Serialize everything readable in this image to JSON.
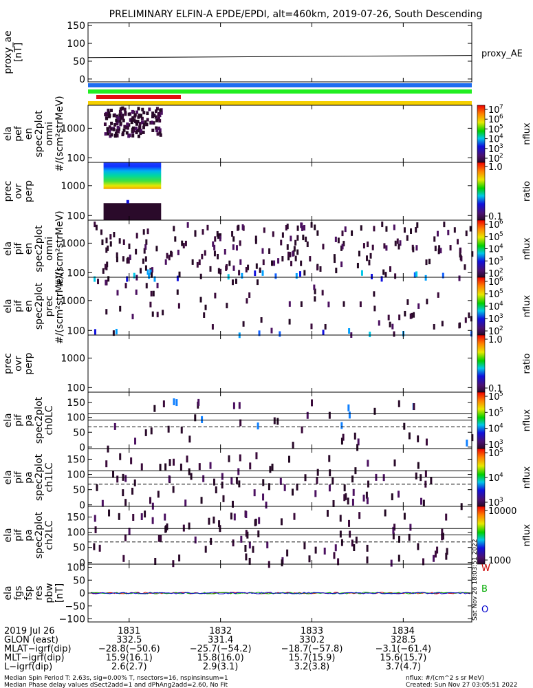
{
  "title": "PRELIMINARY ELFIN-A EPDE/EPDI, alt=460km, 2019-07-26, South Descending",
  "colors": {
    "bar_blue": "#1e6cf0",
    "bar_green": "#22ee22",
    "bar_red": "#e01010",
    "bar_yellow": "#f5d000",
    "pbw_w": "#cc0000",
    "pbw_b": "#00aa00",
    "pbw_o": "#0000cc"
  },
  "chart_data": [
    {
      "id": "proxy_ae",
      "type": "line",
      "ylabel_lines": [
        "proxy_ae",
        "[nT]"
      ],
      "legend": "proxy_AE",
      "ylim": [
        -8,
        158
      ],
      "yticks": [
        "150",
        "100",
        "50",
        "0"
      ],
      "ytick_values": [
        150,
        100,
        50,
        0
      ],
      "x": [
        1830.55,
        1834.75
      ],
      "values": [
        60,
        66
      ]
    },
    {
      "id": "epd_ef_omni",
      "type": "heatmap",
      "ylabel_lines": [
        "ela",
        "pef",
        "en",
        "spec2plot",
        "omni",
        "#/(scm²strMeV)"
      ],
      "ylim_log": [
        70,
        6000
      ],
      "yticks": [
        "1000",
        "100"
      ],
      "ytick_values": [
        1000,
        100
      ],
      "colorbar": {
        "label": "nflux",
        "ticks": [
          "10",
          "10",
          "10",
          "10",
          "10",
          "10"
        ],
        "exps": [
          "7",
          "6",
          "5",
          "4",
          "3",
          "2"
        ]
      }
    },
    {
      "id": "epd_ef_prec_ratio",
      "type": "heatmap",
      "ylabel_lines": [
        "prec",
        "ovr",
        "perp"
      ],
      "ylim_log": [
        70,
        6000
      ],
      "yticks": [
        "1000",
        "100"
      ],
      "ytick_values": [
        1000,
        100
      ],
      "colorbar": {
        "label": "ratio",
        "ticks": [
          "1.0",
          "0.1"
        ]
      }
    },
    {
      "id": "epd_if_omni",
      "type": "heatmap",
      "ylabel_lines": [
        "ela",
        "pif",
        "en",
        "spec2plot",
        "omni",
        "#/(scm²strMeV)"
      ],
      "ylim_log": [
        70,
        6000
      ],
      "yticks": [
        "1000",
        "100"
      ],
      "ytick_values": [
        1000,
        100
      ],
      "colorbar": {
        "label": "nflux",
        "ticks": [
          "10",
          "10",
          "10",
          "10",
          "10"
        ],
        "exps": [
          "6",
          "5",
          "4",
          "3",
          "2"
        ]
      }
    },
    {
      "id": "epd_if_prec",
      "type": "heatmap",
      "ylabel_lines": [
        "ela",
        "pif",
        "en",
        "spec2plot",
        "prec",
        "#/(scm²strMeV)"
      ],
      "ylim_log": [
        70,
        6000
      ],
      "yticks": [
        "1000",
        "100"
      ],
      "ytick_values": [
        1000,
        100
      ],
      "colorbar": {
        "label": "nflux",
        "ticks": [
          "10",
          "10",
          "10",
          "10",
          "10"
        ],
        "exps": [
          "6",
          "5",
          "4",
          "3",
          "2"
        ]
      }
    },
    {
      "id": "epd_if_prec_ratio",
      "type": "heatmap",
      "ylabel_lines": [
        "prec",
        "ovr",
        "perp"
      ],
      "ylim_log": [
        70,
        6000
      ],
      "yticks": [
        "1000",
        "100"
      ],
      "ytick_values": [
        1000,
        100
      ],
      "colorbar": {
        "label": "ratio",
        "ticks": [
          "1.0",
          "0.1"
        ]
      }
    },
    {
      "id": "pa_ch0",
      "type": "heatmap",
      "ylabel_lines": [
        "ela",
        "pif",
        "pa",
        "spec2plot",
        "ch0LC"
      ],
      "ylim": [
        -5,
        185
      ],
      "yticks": [
        "150",
        "100",
        "50",
        "0"
      ],
      "ytick_values": [
        150,
        100,
        50,
        0
      ],
      "colorbar": {
        "label": "nflux",
        "ticks": [
          "10",
          "10",
          "10",
          "10"
        ],
        "exps": [
          "5",
          "5",
          "4",
          "3"
        ]
      }
    },
    {
      "id": "pa_ch1",
      "type": "heatmap",
      "ylabel_lines": [
        "ela",
        "pif",
        "pa",
        "spec2plot",
        "ch1LC"
      ],
      "ylim": [
        -5,
        185
      ],
      "yticks": [
        "150",
        "100",
        "50",
        "0"
      ],
      "ytick_values": [
        150,
        100,
        50,
        0
      ],
      "colorbar": {
        "label": "nflux",
        "ticks": [
          "10",
          "10",
          "10"
        ],
        "exps": [
          "5",
          "4",
          "3"
        ]
      }
    },
    {
      "id": "pa_ch2",
      "type": "heatmap",
      "ylabel_lines": [
        "ela",
        "pif",
        "pa",
        "spec2plot",
        "ch2LC"
      ],
      "ylim": [
        -5,
        185
      ],
      "yticks": [
        "150",
        "100",
        "50",
        "0"
      ],
      "ytick_values": [
        150,
        100,
        50,
        0
      ],
      "colorbar": {
        "label": "nflux",
        "ticks": [
          "10000",
          "1000"
        ]
      }
    },
    {
      "id": "fgs_pbw",
      "type": "line",
      "ylabel_lines": [
        "ela",
        "fgs",
        "fsp",
        "res",
        "pbw",
        "[nT]"
      ],
      "ylim": [
        -112,
        112
      ],
      "yticks": [
        "100",
        "50",
        "0",
        "−50",
        "−100"
      ],
      "ytick_values": [
        100,
        50,
        0,
        -50,
        -100
      ],
      "legend": [
        "W",
        "B",
        "O"
      ]
    }
  ],
  "xaxis": {
    "xlim": [
      1830.55,
      1834.75
    ],
    "tick_values": [
      1831,
      1832,
      1833,
      1834
    ],
    "tick_labels": [
      "1831",
      "1832",
      "1833",
      "1834"
    ],
    "rows": [
      {
        "label": "2019 Jul 26",
        "values": [
          "1831",
          "1832",
          "1833",
          "1834"
        ]
      },
      {
        "label": "GLON (east)",
        "values": [
          "332.5",
          "331.4",
          "330.2",
          "328.5"
        ]
      },
      {
        "label": "MLAT−igrf(dip)",
        "values": [
          "−28.8(−50.6)",
          "−25.7(−54.2)",
          "−18.7(−57.8)",
          "−3.1(−61.4)"
        ]
      },
      {
        "label": "MLT−igrf(dip)",
        "values": [
          "15.9(16.1)",
          "15.8(16.0)",
          "15.7(15.9)",
          "15.6(15.7)"
        ]
      },
      {
        "label": "L−igrf(dip)",
        "values": [
          "2.6(2.7)",
          "2.9(3.1)",
          "3.2(3.8)",
          "3.7(4.7)"
        ]
      }
    ]
  },
  "footer": {
    "line1": "Median Spin Period T: 2.63s, sig=0.00% T, nsectors=16, nspinsinsum=1",
    "line2": "Median Phase delay values dSect2add=1 and dPhAng2add=2.60, No Fit",
    "right1": "nflux: #/(cm^2 s sr MeV)",
    "right2": "Created: Sun Nov 27 03:05:51 2022",
    "vertical": "Sat Nov 26 18:03:51 2022"
  }
}
